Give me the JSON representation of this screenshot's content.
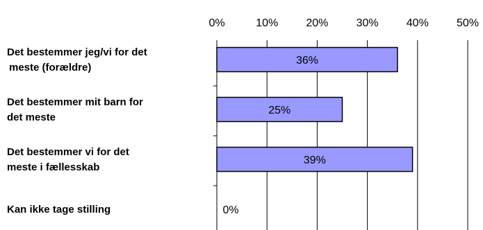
{
  "chart_data": {
    "type": "bar",
    "orientation": "horizontal",
    "categories": [
      [
        "Det bestemmer jeg/vi for det",
        "meste (forældre)"
      ],
      [
        "Det bestemmer mit barn for",
        "det meste"
      ],
      [
        "Det bestemmer vi for det",
        "meste i fællesskab"
      ],
      [
        "Kan ikke tage stilling"
      ]
    ],
    "values": [
      36,
      25,
      39,
      0
    ],
    "data_labels": [
      "36%",
      "25%",
      "39%",
      "0%"
    ],
    "xlim": [
      0,
      50
    ],
    "ticks": [
      0,
      10,
      20,
      30,
      40,
      50
    ],
    "tick_labels": [
      "0%",
      "10%",
      "20%",
      "30%",
      "40%",
      "50%"
    ],
    "x_axis_position": "top",
    "grid": true,
    "legend": "none",
    "bar_color": "#9999ff",
    "bar_border_color": "#000000"
  }
}
